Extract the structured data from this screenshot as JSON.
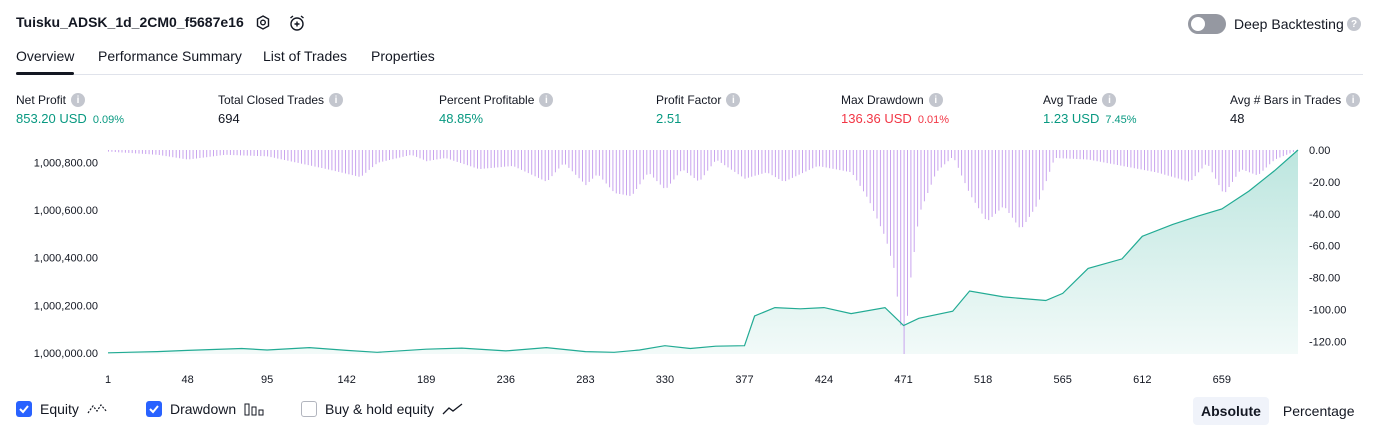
{
  "header": {
    "strategy_title": "Tuisku_ADSK_1d_2CM0_f5687e16",
    "deep_backtesting_label": "Deep Backtesting",
    "deep_backtesting_on": false
  },
  "tabs": [
    {
      "label": "Overview",
      "active": true
    },
    {
      "label": "Performance Summary",
      "active": false
    },
    {
      "label": "List of Trades",
      "active": false
    },
    {
      "label": "Properties",
      "active": false
    }
  ],
  "metrics": {
    "net_profit": {
      "label": "Net Profit",
      "value": "853.20 USD",
      "pct": "0.09%"
    },
    "total_closed_trades": {
      "label": "Total Closed Trades",
      "value": "694"
    },
    "percent_profitable": {
      "label": "Percent Profitable",
      "value": "48.85%"
    },
    "profit_factor": {
      "label": "Profit Factor",
      "value": "2.51"
    },
    "max_drawdown": {
      "label": "Max Drawdown",
      "value": "136.36 USD",
      "pct": "0.01%"
    },
    "avg_trade": {
      "label": "Avg Trade",
      "value": "1.23 USD",
      "pct": "7.45%"
    },
    "avg_bars": {
      "label": "Avg # Bars in Trades",
      "value": "48"
    }
  },
  "colors": {
    "positive": "#089981",
    "negative": "#f23645",
    "equity_line": "#22ab94",
    "drawdown_bars": "#c9a4ee",
    "accent": "#2962ff"
  },
  "chart_data": {
    "type": "area",
    "x_ticks": [
      1,
      48,
      95,
      142,
      189,
      236,
      283,
      330,
      377,
      424,
      471,
      518,
      565,
      612,
      659
    ],
    "xlim": [
      1,
      704
    ],
    "equity_axis": {
      "ticks": [
        "1,000,000.00",
        "1,000,200.00",
        "1,000,400.00",
        "1,000,600.00",
        "1,000,800.00"
      ],
      "ylim": [
        999995,
        1000853
      ]
    },
    "drawdown_axis": {
      "ticks": [
        "0.00",
        "-20.00",
        "-40.00",
        "-60.00",
        "-80.00",
        "-100.00",
        "-120.00"
      ],
      "ylim": [
        -128,
        0
      ]
    },
    "series": [
      {
        "name": "Equity",
        "x": [
          1,
          30,
          48,
          80,
          95,
          120,
          142,
          160,
          189,
          210,
          236,
          260,
          283,
          300,
          315,
          330,
          345,
          360,
          377,
          383,
          395,
          410,
          424,
          440,
          460,
          471,
          480,
          500,
          510,
          530,
          555,
          565,
          580,
          600,
          612,
          630,
          645,
          659,
          675,
          690,
          704
        ],
        "y": [
          1000000,
          1000005,
          1000010,
          1000018,
          1000012,
          1000022,
          1000010,
          1000002,
          1000015,
          1000020,
          1000008,
          1000022,
          1000005,
          1000002,
          1000012,
          1000030,
          1000018,
          1000028,
          1000030,
          1000155,
          1000190,
          1000185,
          1000190,
          1000165,
          1000190,
          1000115,
          1000145,
          1000175,
          1000260,
          1000235,
          1000220,
          1000250,
          1000355,
          1000395,
          1000490,
          1000540,
          1000575,
          1000605,
          1000680,
          1000765,
          1000853
        ]
      },
      {
        "name": "Drawdown",
        "x": [
          1,
          30,
          48,
          70,
          95,
          130,
          150,
          160,
          180,
          189,
          200,
          220,
          240,
          260,
          270,
          283,
          290,
          300,
          310,
          320,
          330,
          340,
          350,
          360,
          377,
          390,
          400,
          420,
          440,
          450,
          460,
          465,
          471,
          475,
          480,
          490,
          500,
          510,
          520,
          530,
          540,
          550,
          560,
          580,
          600,
          620,
          640,
          650,
          660,
          670,
          680,
          690,
          704
        ],
        "y": [
          -1,
          -3,
          -6,
          -3,
          -4,
          -12,
          -17,
          -8,
          -3,
          -7,
          -5,
          -12,
          -10,
          -20,
          -8,
          -22,
          -15,
          -27,
          -29,
          -14,
          -25,
          -12,
          -20,
          -6,
          -18,
          -14,
          -20,
          -10,
          -14,
          -31,
          -55,
          -74,
          -128,
          -80,
          -40,
          -14,
          -4,
          -28,
          -45,
          -35,
          -50,
          -34,
          -5,
          -6,
          -10,
          -14,
          -20,
          -8,
          -28,
          -12,
          -16,
          -6,
          0
        ]
      }
    ]
  },
  "legend": {
    "equity": {
      "label": "Equity",
      "checked": true
    },
    "drawdown": {
      "label": "Drawdown",
      "checked": true
    },
    "buy_hold": {
      "label": "Buy & hold equity",
      "checked": false
    }
  },
  "view_toggle": {
    "absolute": "Absolute",
    "percentage": "Percentage",
    "selected": "Absolute"
  }
}
